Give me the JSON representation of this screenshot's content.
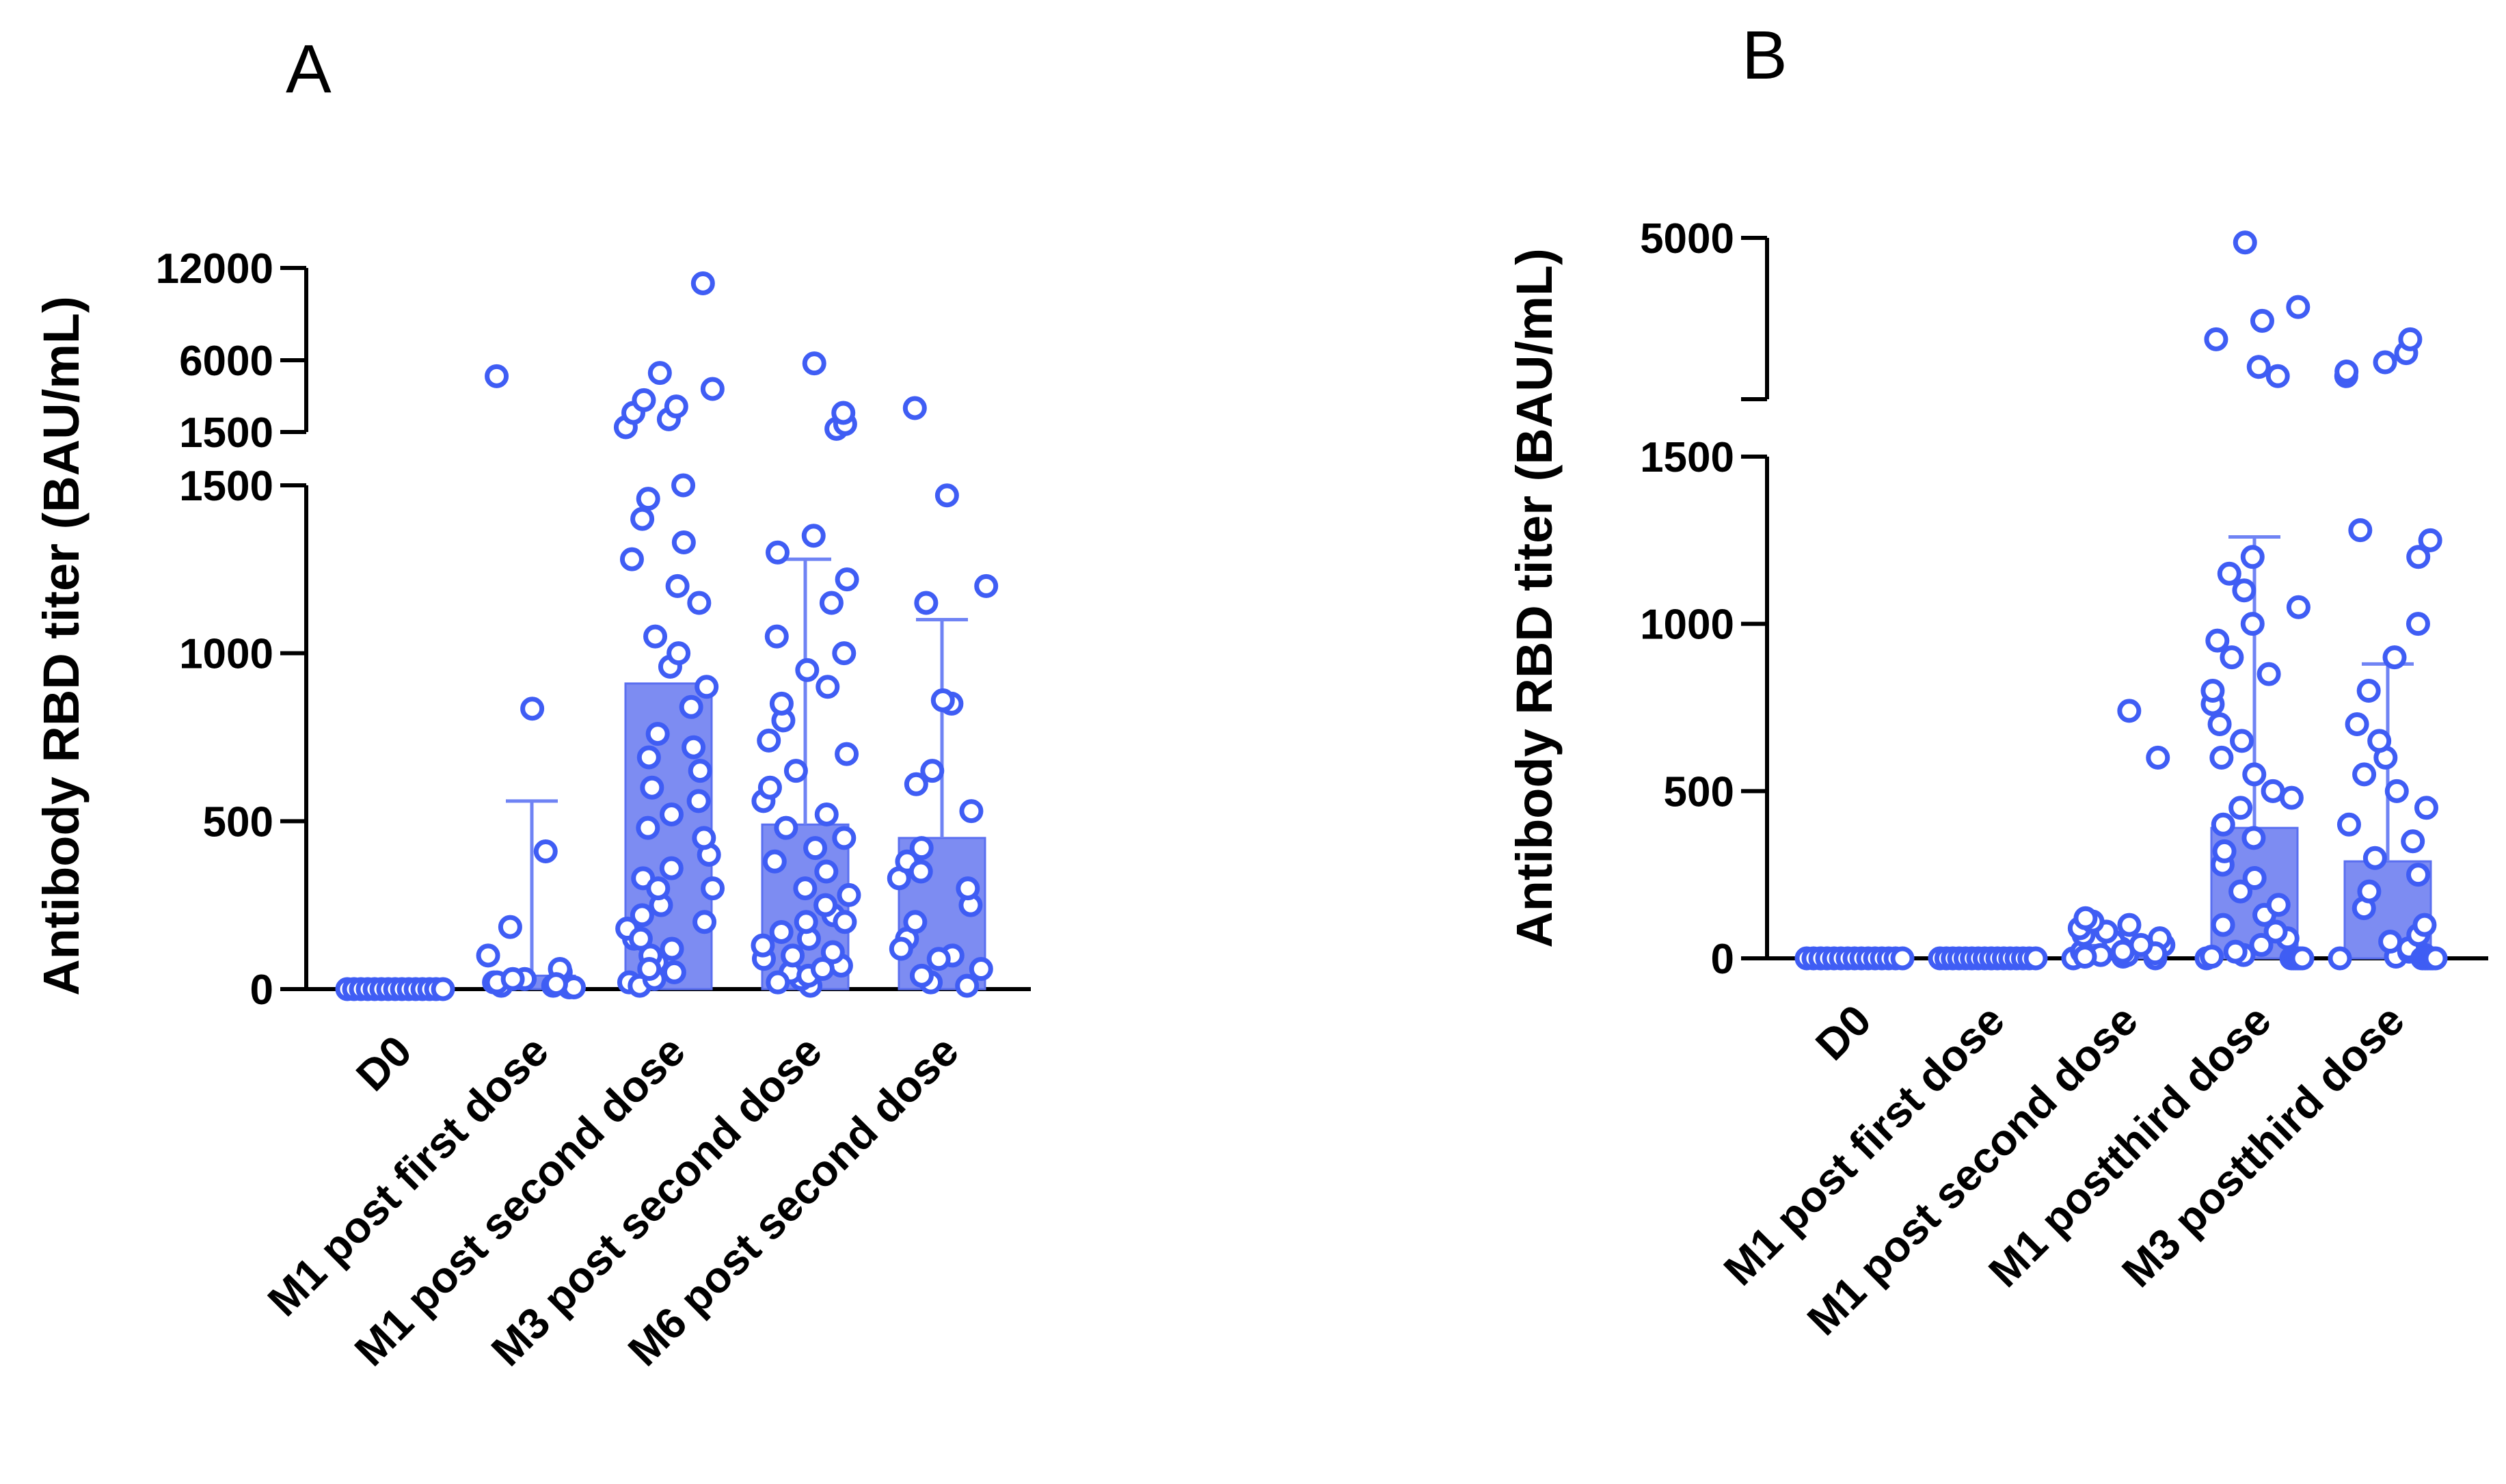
{
  "chart_data": [
    {
      "type": "bar",
      "panel": "A",
      "ylabel": "Antibody RBD titer (BAU/mL)",
      "categories": [
        "D0",
        "M1 post first dose",
        "M1 post second dose",
        "M3 post second dose",
        "M6 post second dose"
      ],
      "values": [
        0,
        40,
        910,
        490,
        450
      ],
      "error_upper": [
        0,
        560,
        910,
        1280,
        1100
      ],
      "y_axis_segments": [
        {
          "range": [
            0,
            1500
          ],
          "ticks": [
            0,
            500,
            1000,
            1500
          ],
          "tick_labels": [
            "0",
            "500",
            "1000",
            "1500"
          ]
        },
        {
          "range": [
            1500,
            12000
          ],
          "ticks": [
            1500,
            6000,
            12000
          ],
          "tick_labels": [
            "1500",
            "6000",
            "12000"
          ]
        }
      ],
      "points": [
        [
          0,
          0,
          0,
          0,
          0,
          0,
          0,
          0,
          0,
          0,
          0,
          0,
          0,
          0,
          0
        ],
        [
          5,
          10,
          20,
          30,
          50,
          10,
          60,
          20,
          5,
          30,
          15,
          100,
          185,
          410,
          835,
          5000
        ],
        [
          20,
          50,
          80,
          100,
          120,
          150,
          180,
          200,
          220,
          250,
          300,
          330,
          360,
          400,
          450,
          480,
          520,
          560,
          600,
          650,
          690,
          720,
          760,
          840,
          900,
          960,
          1000,
          1050,
          1150,
          1200,
          1280,
          1330,
          1400,
          1460,
          1500,
          1800,
          2300,
          2700,
          3100,
          3500,
          4200,
          5200,
          11000,
          10,
          30,
          60,
          150,
          300
        ],
        [
          10,
          30,
          50,
          70,
          90,
          110,
          130,
          150,
          170,
          200,
          220,
          250,
          280,
          300,
          350,
          380,
          420,
          450,
          480,
          520,
          560,
          600,
          650,
          700,
          740,
          800,
          850,
          900,
          950,
          1000,
          1050,
          1150,
          1220,
          1300,
          1350,
          1700,
          2000,
          2700,
          5800,
          20,
          40,
          60,
          100,
          200
        ],
        [
          20,
          40,
          60,
          100,
          150,
          200,
          250,
          300,
          330,
          380,
          420,
          530,
          610,
          650,
          850,
          860,
          1150,
          1200,
          1470,
          3000,
          10,
          90,
          120,
          350
        ]
      ]
    },
    {
      "type": "bar",
      "panel": "B",
      "ylabel": "Antibody RBD titer (BAU/mL)",
      "categories": [
        "D0",
        "M1 post first dose",
        "M1 post second dose",
        "M1 postthird dose",
        "M3 postthird dose"
      ],
      "values": [
        0,
        0,
        40,
        390,
        290
      ],
      "error_upper": [
        0,
        0,
        40,
        1260,
        880
      ],
      "y_axis_segments": [
        {
          "range": [
            0,
            1500
          ],
          "ticks": [
            0,
            500,
            1000,
            1500
          ],
          "tick_labels": [
            "0",
            "500",
            "1000",
            "1500"
          ]
        },
        {
          "range": [
            1500,
            5000
          ],
          "ticks": [
            5000
          ],
          "tick_labels": [
            "5000"
          ]
        }
      ],
      "points": [
        [
          0,
          0,
          0,
          0,
          0,
          0,
          0,
          0,
          0,
          0,
          0,
          0,
          0,
          0,
          0
        ],
        [
          0,
          0,
          0,
          0,
          0,
          0,
          0,
          0,
          0,
          0,
          0,
          0,
          0,
          0,
          0,
          0
        ],
        [
          0,
          5,
          10,
          20,
          30,
          40,
          50,
          60,
          70,
          80,
          90,
          100,
          110,
          120,
          10,
          20,
          600,
          740,
          0,
          5,
          15,
          40
        ],
        [
          0,
          5,
          10,
          20,
          40,
          60,
          80,
          100,
          130,
          160,
          200,
          240,
          280,
          320,
          360,
          400,
          450,
          480,
          500,
          550,
          600,
          650,
          700,
          760,
          800,
          850,
          900,
          950,
          1000,
          1050,
          1100,
          1150,
          1200,
          2000,
          2200,
          2800,
          3200,
          3500,
          4900,
          0,
          0,
          0,
          0,
          0,
          0
        ],
        [
          0,
          5,
          10,
          20,
          30,
          50,
          70,
          100,
          150,
          200,
          250,
          300,
          350,
          400,
          450,
          500,
          550,
          600,
          650,
          700,
          800,
          900,
          1000,
          1200,
          1250,
          1280,
          2000,
          2100,
          2300,
          2500,
          2800,
          0,
          0,
          0,
          0,
          0,
          0
        ]
      ]
    }
  ]
}
